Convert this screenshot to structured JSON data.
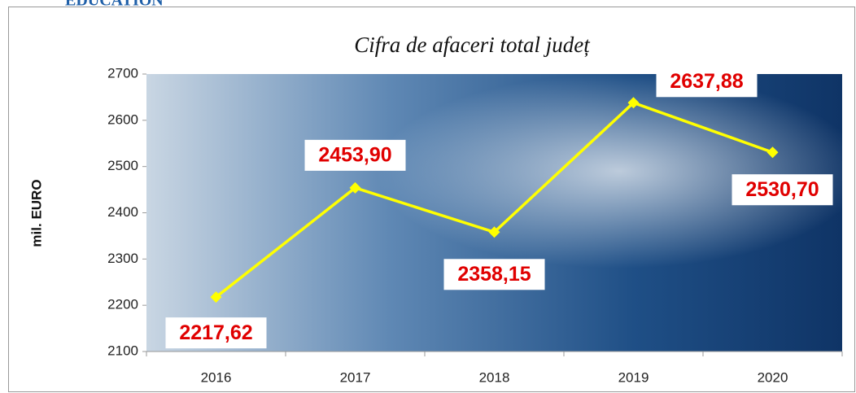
{
  "page_header": "EDUCATION",
  "chart_data": {
    "type": "line",
    "title": "Cifra de afaceri total județ",
    "y_label": "mil. EURO",
    "categories": [
      "2016",
      "2017",
      "2018",
      "2019",
      "2020"
    ],
    "values": [
      2217.62,
      2453.9,
      2358.15,
      2637.88,
      2530.7
    ],
    "value_labels": [
      "2217,62",
      "2453,90",
      "2358,15",
      "2637,88",
      "2530,70"
    ],
    "color": "#ffff00",
    "ylim": [
      2100,
      2700
    ],
    "yticks": [
      2100,
      2200,
      2300,
      2400,
      2500,
      2600,
      2700
    ]
  }
}
